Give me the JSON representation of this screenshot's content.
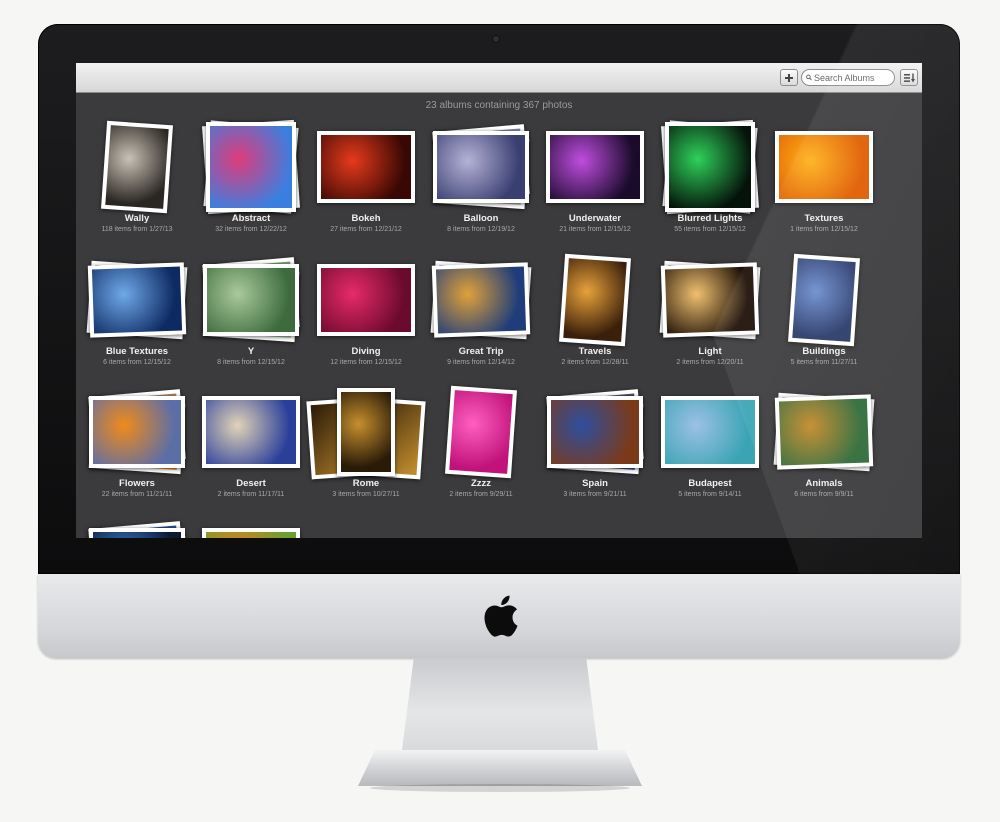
{
  "toolbar": {
    "add_icon": "plus-icon",
    "search": {
      "placeholder": "Search Albums",
      "value": ""
    },
    "sort_icon": "sort-list-icon"
  },
  "summary": "23 albums containing 367 photos",
  "colors": {
    "screen_bg": "#3b3b3d",
    "toolbar_top": "#f2f2f2",
    "title_text": "#f0f0f0",
    "meta_text": "#a8a8a8"
  },
  "albums": [
    {
      "name": "Wally",
      "meta": "118 items from 1/27/13",
      "stack": "portrait",
      "c1": "#c9c2b6",
      "c2": "#2a2622"
    },
    {
      "name": "Abstract",
      "meta": "32 items from 12/22/12",
      "stack": "square3",
      "c1": "#e03b7a",
      "c2": "#3a7fe0"
    },
    {
      "name": "Bokeh",
      "meta": "27 items from 12/21/12",
      "stack": "landscape",
      "c1": "#e63a1c",
      "c2": "#3a0804"
    },
    {
      "name": "Balloon",
      "meta": "8 items from 12/19/12",
      "stack": "land3",
      "c1": "#b5b2d6",
      "c2": "#3a3f72"
    },
    {
      "name": "Underwater",
      "meta": "21 items from 12/15/12",
      "stack": "landscape",
      "c1": "#c04de0",
      "c2": "#1a0b2b"
    },
    {
      "name": "Blurred Lights",
      "meta": "55 items from 12/15/12",
      "stack": "square3",
      "c1": "#2fd15a",
      "c2": "#05130b"
    },
    {
      "name": "Textures",
      "meta": "1 items from 12/15/12",
      "stack": "landscape",
      "c1": "#ffb21a",
      "c2": "#e05c00"
    },
    {
      "name": "Blue Textures",
      "meta": "6 items from 12/15/12",
      "stack": "land2",
      "c1": "#6fa9e8",
      "c2": "#0e2a63"
    },
    {
      "name": "Y",
      "meta": "8 items from 12/15/12",
      "stack": "land3",
      "c1": "#a9c99b",
      "c2": "#3d6b3e"
    },
    {
      "name": "Diving",
      "meta": "12 items from 12/15/12",
      "stack": "landscape",
      "c1": "#e82a6a",
      "c2": "#6a0a2c"
    },
    {
      "name": "Great Trip",
      "meta": "9 items from 12/14/12",
      "stack": "land2",
      "c1": "#e0a13a",
      "c2": "#1f3d7a"
    },
    {
      "name": "Travels",
      "meta": "2 items from 12/28/11",
      "stack": "portrait",
      "c1": "#e8a23a",
      "c2": "#3a1f0b"
    },
    {
      "name": "Light",
      "meta": "2 items from 12/20/11",
      "stack": "land2",
      "c1": "#f0c070",
      "c2": "#1a0d05"
    },
    {
      "name": "Buildings",
      "meta": "5 items from 11/27/11",
      "stack": "portrait",
      "c1": "#6d8fd0",
      "c2": "#2a3a6a"
    },
    {
      "name": "Flowers",
      "meta": "22 items from 11/21/11",
      "stack": "land3",
      "c1": "#f08a1a",
      "c2": "#5b6ea8"
    },
    {
      "name": "Desert",
      "meta": "2 items from 11/17/11",
      "stack": "landscape",
      "c1": "#e2d3b8",
      "c2": "#2a3f9a"
    },
    {
      "name": "Rome",
      "meta": "3 items from 10/27/11",
      "stack": "portrait3",
      "c1": "#c6902e",
      "c2": "#2a1a08"
    },
    {
      "name": "Zzzz",
      "meta": "2 items from 9/29/11",
      "stack": "portrait",
      "c1": "#ff5fc0",
      "c2": "#c0127a"
    },
    {
      "name": "Spain",
      "meta": "3 items from 9/21/11",
      "stack": "land3",
      "c1": "#2e4fa0",
      "c2": "#7a3a1a"
    },
    {
      "name": "Budapest",
      "meta": "5 items from 9/14/11",
      "stack": "landscape",
      "c1": "#9cc0e6",
      "c2": "#3aa4b4"
    },
    {
      "name": "Animals",
      "meta": "6 items from 9/9/11",
      "stack": "land2",
      "c1": "#c48a2a",
      "c2": "#2f6b3a"
    },
    {
      "name": "",
      "meta": "",
      "stack": "land3",
      "c1": "#3a7ad0",
      "c2": "#0b1a33"
    },
    {
      "name": "",
      "meta": "",
      "stack": "landscape",
      "c1": "#f07a1a",
      "c2": "#6aa030"
    }
  ]
}
